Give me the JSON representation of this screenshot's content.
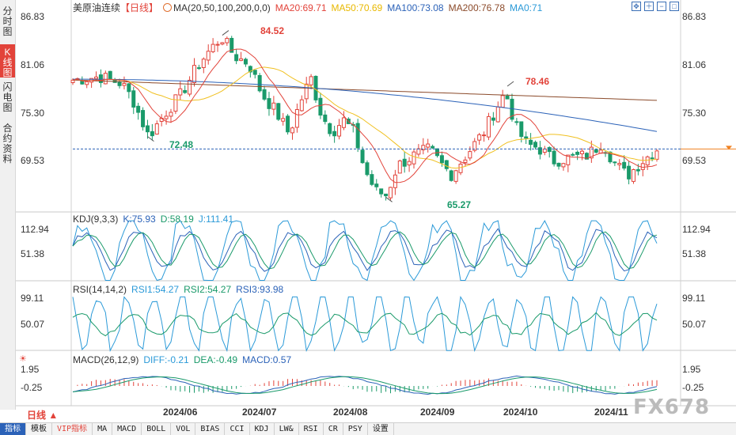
{
  "side_tabs": [
    {
      "label": "分时图",
      "active": false
    },
    {
      "label": "K线图",
      "active": true
    },
    {
      "label": "闪电图",
      "active": false
    },
    {
      "label": "合约资料",
      "active": false
    }
  ],
  "main_legend": {
    "symbol": "美原油连续",
    "period": "【日线】",
    "ma_def": "MA(20,50,100,200,0,0)",
    "ma20": "MA20:69.71",
    "ma50": "MA50:70.69",
    "ma100": "MA100:73.08",
    "ma200": "MA200:76.78",
    "ma0": "MA0:71"
  },
  "main_axis": {
    "left_labels": [
      "86.83",
      "81.06",
      "75.30",
      "69.53"
    ],
    "right_labels": [
      "86.83",
      "81.06",
      "75.30",
      "69.53"
    ]
  },
  "price_labels": {
    "high1": "84.52",
    "low1": "72.48",
    "high2": "78.46",
    "low2": "65.27"
  },
  "kdj": {
    "name": "KDJ(9,3,3)",
    "k": "K:75.93",
    "d": "D:58.19",
    "j": "J:111.41",
    "left_labels": [
      "112.94",
      "51.38"
    ],
    "right_labels": [
      "112.94",
      "51.38"
    ]
  },
  "rsi": {
    "name": "RSI(14,14,2)",
    "rsi1": "RSI1:54.27",
    "rsi2": "RSI2:54.27",
    "rsi3": "RSI3:93.98",
    "left_labels": [
      "99.11",
      "50.07"
    ],
    "right_labels": [
      "99.11",
      "50.07"
    ]
  },
  "macd": {
    "name": "MACD(26,12,9)",
    "diff": "DIFF:-0.21",
    "dea": "DEA:-0.49",
    "macd": "MACD:0.57",
    "left_labels": [
      "1.95",
      "-0.25"
    ],
    "right_labels": [
      "1.95",
      "-0.25"
    ]
  },
  "dates": [
    "2024/06",
    "2024/07",
    "2024/08",
    "2024/09",
    "2024/10",
    "2024/11"
  ],
  "period_button": "日线",
  "toolbar": [
    "指标",
    "模板",
    "VIP指标",
    "MA",
    "MACD",
    "BOLL",
    "VOL",
    "BIAS",
    "CCI",
    "KDJ",
    "LW&",
    "RSI",
    "CR",
    "PSY",
    "设置"
  ],
  "watermark": "FX678",
  "colors": {
    "up": "#e2433a",
    "down": "#1a9a6a",
    "ma20": "#e2433a",
    "ma50": "#f0c020",
    "ma100": "#2b62b8",
    "ma200": "#8b4a2a",
    "ma0": "#2b9ad8",
    "accent": "#e2433a"
  },
  "chart_data": {
    "type": "candlestick",
    "title": "美原油连续【日线】",
    "current_price": 71,
    "ylim": [
      63.5,
      88.5
    ],
    "x_range": [
      "2024/05",
      "2024/11"
    ],
    "key_points": [
      {
        "label": "84.52",
        "value": 84.52,
        "kind": "high"
      },
      {
        "label": "72.48",
        "value": 72.48,
        "kind": "low"
      },
      {
        "label": "78.46",
        "value": 78.46,
        "kind": "high"
      },
      {
        "label": "65.27",
        "value": 65.27,
        "kind": "low"
      }
    ],
    "series": [
      {
        "name": "MA20",
        "last": 69.71
      },
      {
        "name": "MA50",
        "last": 70.69
      },
      {
        "name": "MA100",
        "last": 73.08
      },
      {
        "name": "MA200",
        "last": 76.78
      }
    ]
  }
}
